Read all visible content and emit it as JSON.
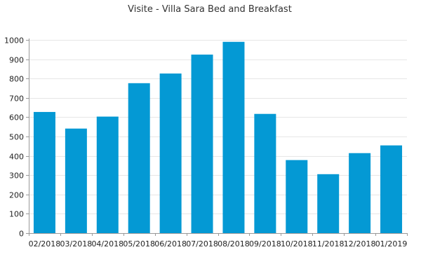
{
  "chart_data": {
    "type": "bar",
    "title": "Visite - Villa Sara Bed and Breakfast",
    "xlabel": "",
    "ylabel": "",
    "categories": [
      "02/2018",
      "03/2018",
      "04/2018",
      "05/2018",
      "06/2018",
      "07/2018",
      "08/2018",
      "09/2018",
      "10/2018",
      "11/2018",
      "12/2018",
      "01/2019"
    ],
    "series": [
      {
        "values": [
          627,
          541,
          603,
          776,
          826,
          924,
          990,
          617,
          378,
          305,
          414,
          454
        ]
      }
    ],
    "ylim": [
      0,
      1000
    ],
    "yticks": [
      0,
      100,
      200,
      300,
      400,
      500,
      600,
      700,
      800,
      900,
      1000
    ],
    "grid": true,
    "legend": "none",
    "colors": {
      "bar": "#0499d4",
      "grid": "#e6e6e6",
      "axis": "#999999",
      "text": "#222222"
    }
  }
}
